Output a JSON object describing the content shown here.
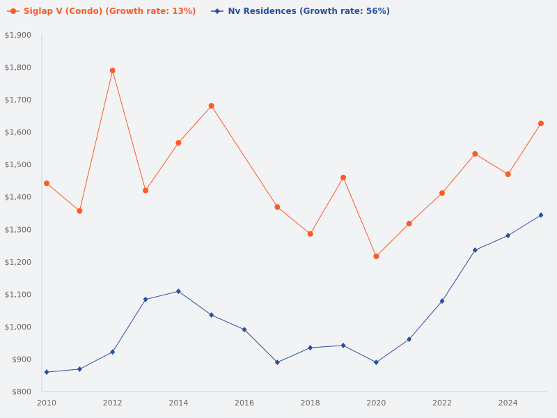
{
  "chart_data": {
    "type": "line",
    "x": [
      2010,
      2011,
      2012,
      2013,
      2014,
      2015,
      2016,
      2017,
      2018,
      2019,
      2020,
      2021,
      2022,
      2023,
      2024,
      2025
    ],
    "series": [
      {
        "name": "Siglap V (Condo) (Growth rate: 13%)",
        "color": "#fc5a28",
        "marker": "circle",
        "values": [
          1442,
          1357,
          1790,
          1420,
          1567,
          1681,
          null,
          1369,
          1286,
          1460,
          1217,
          1318,
          1412,
          1533,
          1470,
          1627
        ]
      },
      {
        "name": "Nv Residences (Growth rate: 56%)",
        "color": "#2a4fa0",
        "marker": "diamond",
        "values": [
          860,
          869,
          922,
          1084,
          1109,
          1036,
          991,
          890,
          935,
          942,
          890,
          961,
          1079,
          1236,
          1281,
          1344
        ]
      }
    ],
    "xticks": [
      "2010",
      "2012",
      "2014",
      "2016",
      "2018",
      "2020",
      "2022",
      "2024"
    ],
    "yticks": [
      "$800",
      "$900",
      "$1,000",
      "$1,100",
      "$1,200",
      "$1,300",
      "$1,400",
      "$1,500",
      "$1,600",
      "$1,700",
      "$1,800",
      "$1,900"
    ],
    "ylim": [
      800,
      1900
    ],
    "xlim": [
      2010,
      2025
    ],
    "grid": false,
    "legend": "top-left",
    "title": "",
    "xlabel": "",
    "ylabel": ""
  }
}
